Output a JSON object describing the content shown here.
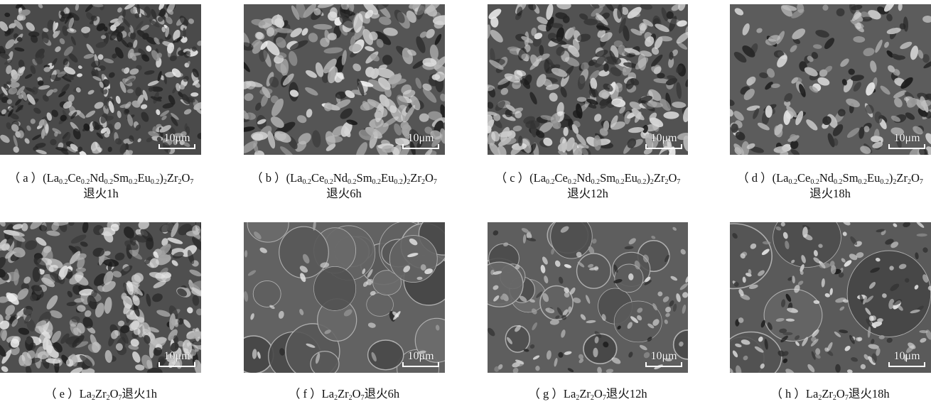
{
  "figure": {
    "scale_bar_label": "10μm",
    "panels": [
      {
        "id": "a",
        "label": "（ a ）",
        "formula": [
          [
            "t",
            "(La"
          ],
          [
            "s",
            "0.2"
          ],
          [
            "t",
            "Ce"
          ],
          [
            "s",
            "0.2"
          ],
          [
            "t",
            "Nd"
          ],
          [
            "s",
            "0.2"
          ],
          [
            "t",
            "Sm"
          ],
          [
            "s",
            "0.2"
          ],
          [
            "t",
            "Eu"
          ],
          [
            "s",
            "0.2"
          ],
          [
            "t",
            ")"
          ],
          [
            "s",
            "2"
          ],
          [
            "t",
            "Zr"
          ],
          [
            "s",
            "2"
          ],
          [
            "t",
            "O"
          ],
          [
            "s",
            "7"
          ]
        ],
        "suffix": "",
        "line2": "退火1h"
      },
      {
        "id": "b",
        "label": "（ b ）",
        "formula": [
          [
            "t",
            "(La"
          ],
          [
            "s",
            "0.2"
          ],
          [
            "t",
            "Ce"
          ],
          [
            "s",
            "0.2"
          ],
          [
            "t",
            "Nd"
          ],
          [
            "s",
            "0.2"
          ],
          [
            "t",
            "Sm"
          ],
          [
            "s",
            "0.2"
          ],
          [
            "t",
            "Eu"
          ],
          [
            "s",
            "0.2"
          ],
          [
            "t",
            ")"
          ],
          [
            "s",
            "2"
          ],
          [
            "t",
            "Zr"
          ],
          [
            "s",
            "2"
          ],
          [
            "t",
            "O"
          ],
          [
            "s",
            "7"
          ]
        ],
        "suffix": "",
        "line2": "退火6h"
      },
      {
        "id": "c",
        "label": "（ c ）",
        "formula": [
          [
            "t",
            "(La"
          ],
          [
            "s",
            "0.2"
          ],
          [
            "t",
            "Ce"
          ],
          [
            "s",
            "0.2"
          ],
          [
            "t",
            "Nd"
          ],
          [
            "s",
            "0.2"
          ],
          [
            "t",
            "Sm"
          ],
          [
            "s",
            "0.2"
          ],
          [
            "t",
            "Eu"
          ],
          [
            "s",
            "0.2"
          ],
          [
            "t",
            ")"
          ],
          [
            "s",
            "2"
          ],
          [
            "t",
            "Zr"
          ],
          [
            "s",
            "2"
          ],
          [
            "t",
            "O"
          ],
          [
            "s",
            "7"
          ]
        ],
        "suffix": "",
        "line2": "退火12h"
      },
      {
        "id": "d",
        "label": "（ d ）",
        "formula": [
          [
            "t",
            "(La"
          ],
          [
            "s",
            "0.2"
          ],
          [
            "t",
            "Ce"
          ],
          [
            "s",
            "0.2"
          ],
          [
            "t",
            "Nd"
          ],
          [
            "s",
            "0.2"
          ],
          [
            "t",
            "Sm"
          ],
          [
            "s",
            "0.2"
          ],
          [
            "t",
            "Eu"
          ],
          [
            "s",
            "0.2"
          ],
          [
            "t",
            ")"
          ],
          [
            "s",
            "2"
          ],
          [
            "t",
            "Zr"
          ],
          [
            "s",
            "2"
          ],
          [
            "t",
            "O"
          ],
          [
            "s",
            "7"
          ]
        ],
        "suffix": "",
        "line2": "退火18h"
      },
      {
        "id": "e",
        "label": "（ e ）",
        "formula": [
          [
            "t",
            "La"
          ],
          [
            "s",
            "2"
          ],
          [
            "t",
            "Zr"
          ],
          [
            "s",
            "2"
          ],
          [
            "t",
            "O"
          ],
          [
            "s",
            "7"
          ]
        ],
        "suffix": "退火1h",
        "line2": ""
      },
      {
        "id": "f",
        "label": "（ f ）",
        "formula": [
          [
            "t",
            "La"
          ],
          [
            "s",
            "2"
          ],
          [
            "t",
            "Zr"
          ],
          [
            "s",
            "2"
          ],
          [
            "t",
            "O"
          ],
          [
            "s",
            "7"
          ]
        ],
        "suffix": "退火6h",
        "line2": ""
      },
      {
        "id": "g",
        "label": "（ g ）",
        "formula": [
          [
            "t",
            "La"
          ],
          [
            "s",
            "2"
          ],
          [
            "t",
            "Zr"
          ],
          [
            "s",
            "2"
          ],
          [
            "t",
            "O"
          ],
          [
            "s",
            "7"
          ]
        ],
        "suffix": "退火12h",
        "line2": ""
      },
      {
        "id": "h",
        "label": "（ h ）",
        "formula": [
          [
            "t",
            "La"
          ],
          [
            "s",
            "2"
          ],
          [
            "t",
            "Zr"
          ],
          [
            "s",
            "2"
          ],
          [
            "t",
            "O"
          ],
          [
            "s",
            "7"
          ]
        ],
        "suffix": "退火18h",
        "line2": ""
      }
    ]
  }
}
